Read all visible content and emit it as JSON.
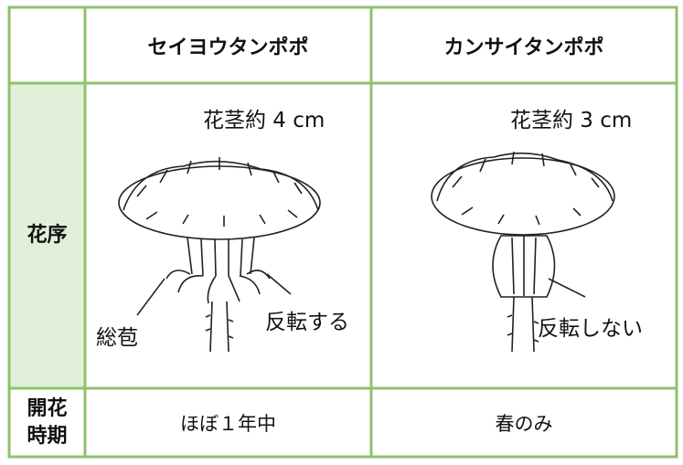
{
  "table": {
    "columns": [
      "セイヨウタンポポ",
      "カンサイタンポポ"
    ],
    "rows": [
      {
        "label": "花序",
        "cells": [
          {
            "stem": "花茎約 4 cm",
            "labels": [
              "総苞",
              "反転する"
            ]
          },
          {
            "stem": "花茎約 3 cm",
            "labels": [
              "反転しない"
            ]
          }
        ]
      },
      {
        "label": [
          "開花",
          "時期"
        ],
        "cells": [
          "ほぼ１年中",
          "春のみ"
        ]
      }
    ]
  }
}
